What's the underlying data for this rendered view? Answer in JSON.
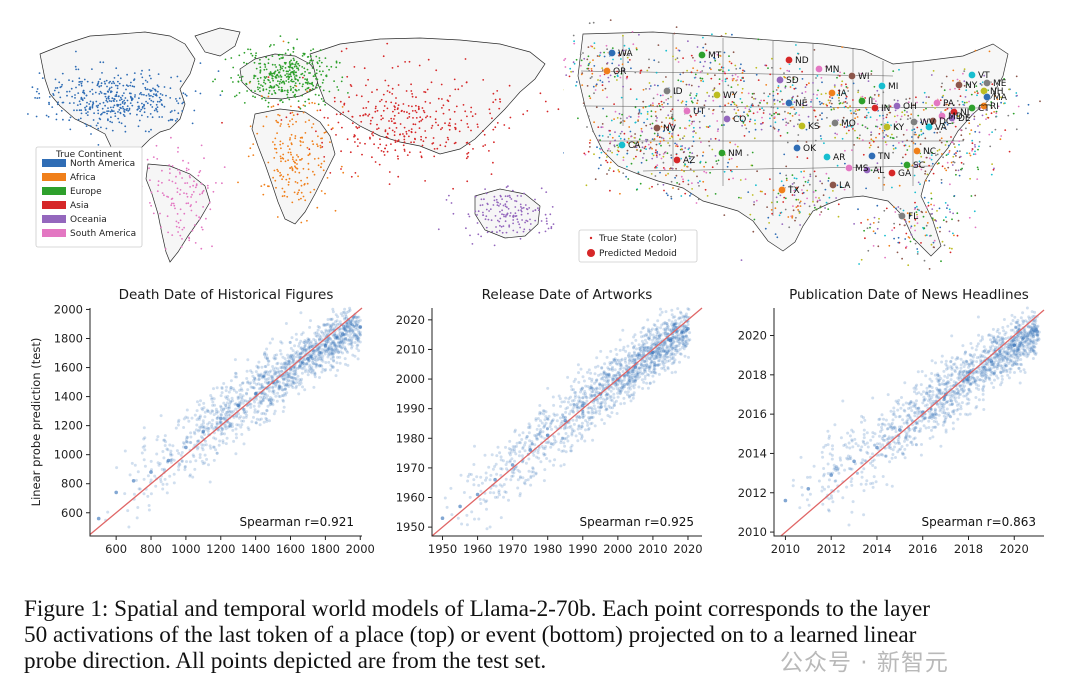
{
  "world_map": {
    "legend_title": "True Continent",
    "continents": [
      {
        "name": "North America",
        "color": "#2f6db5"
      },
      {
        "name": "Africa",
        "color": "#f07f1a"
      },
      {
        "name": "Europe",
        "color": "#2ea02c"
      },
      {
        "name": "Asia",
        "color": "#d62728"
      },
      {
        "name": "Oceania",
        "color": "#9467bd"
      },
      {
        "name": "South America",
        "color": "#e377c2"
      }
    ]
  },
  "us_map": {
    "legend": [
      {
        "label": "True State (color)",
        "marker": "small-dot"
      },
      {
        "label": "Predicted Medoid",
        "marker": "large-dot"
      }
    ],
    "states": [
      "WA",
      "OR",
      "MT",
      "ND",
      "SD",
      "MN",
      "WI",
      "MI",
      "ID",
      "WY",
      "NE",
      "IA",
      "IL",
      "IN",
      "OH",
      "PA",
      "NY",
      "VT",
      "ME",
      "NH",
      "MA",
      "RI",
      "CT",
      "NJ",
      "DE",
      "MD",
      "DC",
      "VA",
      "WV",
      "KY",
      "TN",
      "NC",
      "SC",
      "GA",
      "AL",
      "MS",
      "LA",
      "AR",
      "MO",
      "KS",
      "OK",
      "TX",
      "NM",
      "AZ",
      "CO",
      "UT",
      "NV",
      "CA",
      "FL"
    ]
  },
  "chart_data": [
    {
      "type": "scatter",
      "title": "Death Date of Historical Figures",
      "xlabel": "",
      "ylabel": "Linear probe prediction (test)",
      "xlim": [
        450,
        2010
      ],
      "ylim": [
        440,
        2010
      ],
      "xticks": [
        600,
        800,
        1000,
        1200,
        1400,
        1600,
        1800,
        2000
      ],
      "yticks": [
        600,
        800,
        1000,
        1200,
        1400,
        1600,
        1800,
        2000
      ],
      "x": [
        500,
        600,
        700,
        800,
        900,
        1000,
        1100,
        1200,
        1300,
        1400,
        1500,
        1600,
        1700,
        1800,
        1900,
        2000
      ],
      "y": [
        560,
        740,
        820,
        880,
        960,
        1050,
        1160,
        1250,
        1340,
        1420,
        1500,
        1590,
        1660,
        1750,
        1830,
        1880
      ],
      "reference_line": "y = x",
      "annotation": "Spearman r=0.921"
    },
    {
      "type": "scatter",
      "title": "Release Date of Artworks",
      "xlabel": "",
      "ylabel": "",
      "xlim": [
        1947,
        2024
      ],
      "ylim": [
        1947,
        2024
      ],
      "xticks": [
        1950,
        1960,
        1970,
        1980,
        1990,
        2000,
        2010,
        2020
      ],
      "yticks": [
        1950,
        1960,
        1970,
        1980,
        1990,
        2000,
        2010,
        2020
      ],
      "x": [
        1950,
        1955,
        1960,
        1965,
        1970,
        1975,
        1980,
        1985,
        1990,
        1995,
        2000,
        2005,
        2010,
        2015,
        2020
      ],
      "y": [
        1953,
        1957,
        1961,
        1966,
        1971,
        1976,
        1981,
        1986,
        1991,
        1995,
        2000,
        2004,
        2009,
        2013,
        2017
      ],
      "reference_line": "y = x",
      "annotation": "Spearman r=0.925"
    },
    {
      "type": "scatter",
      "title": "Publication Date of News Headlines",
      "xlabel": "",
      "ylabel": "",
      "xlim": [
        2009.5,
        2021.3
      ],
      "ylim": [
        2009.8,
        2021.4
      ],
      "xticks": [
        2010,
        2012,
        2014,
        2016,
        2018,
        2020
      ],
      "yticks": [
        2010,
        2012,
        2014,
        2016,
        2018,
        2020
      ],
      "x": [
        2010,
        2011,
        2012,
        2013,
        2014,
        2015,
        2016,
        2017,
        2018,
        2019,
        2020,
        2021
      ],
      "y": [
        2011.6,
        2012.2,
        2012.9,
        2013.6,
        2014.3,
        2015.2,
        2016.1,
        2017.0,
        2017.9,
        2018.7,
        2019.5,
        2020.2
      ],
      "reference_line": "y = x",
      "annotation": "Spearman r=0.863"
    }
  ],
  "caption": {
    "lines": [
      "Figure 1: Spatial and temporal world models of Llama-2-70b. Each point corresponds to the layer",
      "50 activations of the last token of a place (top) or event (bottom) projected on to a learned linear",
      "probe direction. All points depicted are from the test set."
    ]
  },
  "watermark": "公众号 · 新智元"
}
